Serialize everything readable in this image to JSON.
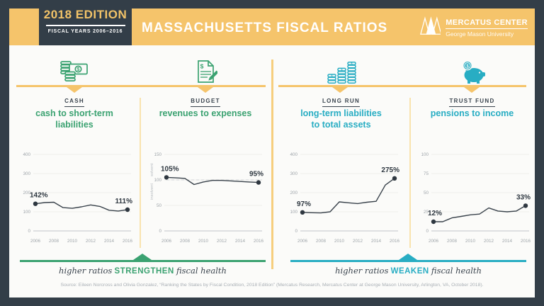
{
  "header": {
    "badge": {
      "edition": "2018 EDITION",
      "years": "FISCAL YEARS 2006–2016"
    },
    "title": "MASSACHUSETTS FISCAL RATIOS",
    "logo": {
      "name": "MERCATUS CENTER",
      "subname": "George Mason University"
    }
  },
  "colors": {
    "navy": "#333E48",
    "yellow": "#F5C46B",
    "green": "#3BA271",
    "teal": "#28ADC3",
    "chart_line": "#39424B",
    "tick_gray": "#9FA5AA",
    "card": "#FBFBF9"
  },
  "sections": [
    {
      "icon": "cash-icon",
      "label": "CASH",
      "subtitle": "cash to short-term\nliabilities",
      "accent": "green"
    },
    {
      "icon": "budget-document-icon",
      "label": "BUDGET",
      "subtitle": "revenues to expenses",
      "accent": "green"
    },
    {
      "icon": "coin-stacks-icon",
      "label": "LONG RUN",
      "subtitle": "long-term liabilities\nto total assets",
      "accent": "teal"
    },
    {
      "icon": "piggy-bank-icon",
      "label": "TRUST FUND",
      "subtitle": "pensions to income",
      "accent": "teal"
    }
  ],
  "chart_data": [
    {
      "type": "line",
      "title": "cash to short-term liabilities",
      "section": "CASH",
      "x": [
        2006,
        2007,
        2008,
        2009,
        2010,
        2011,
        2012,
        2013,
        2014,
        2015,
        2016
      ],
      "values": [
        142,
        148,
        150,
        122,
        118,
        126,
        136,
        128,
        108,
        104,
        111
      ],
      "yticks": [
        0,
        100,
        200,
        300,
        400
      ],
      "ylim": [
        0,
        400
      ],
      "xtick_labels": [
        "2006",
        "2008",
        "2010",
        "2012",
        "2014",
        "2016"
      ],
      "start_label": "142%",
      "end_label": "111%",
      "grid": true,
      "legend": "none"
    },
    {
      "type": "line",
      "title": "revenues to expenses",
      "section": "BUDGET",
      "x": [
        2006,
        2007,
        2008,
        2009,
        2010,
        2011,
        2012,
        2013,
        2014,
        2015,
        2016
      ],
      "values": [
        105,
        104,
        103,
        91,
        96,
        99,
        99,
        98,
        97,
        96,
        95
      ],
      "yticks": [
        0,
        50,
        100,
        150
      ],
      "ylim": [
        0,
        150
      ],
      "xtick_labels": [
        "2006",
        "2008",
        "2010",
        "2012",
        "2014",
        "2016"
      ],
      "reference_line": 100,
      "axis_annotations": [
        "solvent",
        "insolvent"
      ],
      "start_label": "105%",
      "end_label": "95%",
      "grid": true,
      "legend": "none"
    },
    {
      "type": "line",
      "title": "long-term liabilities to total assets",
      "section": "LONG RUN",
      "x": [
        2006,
        2007,
        2008,
        2009,
        2010,
        2011,
        2012,
        2013,
        2014,
        2015,
        2016
      ],
      "values": [
        97,
        95,
        94,
        100,
        152,
        147,
        143,
        150,
        155,
        240,
        275
      ],
      "yticks": [
        0,
        100,
        200,
        300,
        400
      ],
      "ylim": [
        0,
        400
      ],
      "xtick_labels": [
        "2006",
        "2008",
        "2010",
        "2012",
        "2014",
        "2016"
      ],
      "start_label": "97%",
      "end_label": "275%",
      "grid": true,
      "legend": "none"
    },
    {
      "type": "line",
      "title": "pensions to income",
      "section": "TRUST FUND",
      "x": [
        2006,
        2007,
        2008,
        2009,
        2010,
        2011,
        2012,
        2013,
        2014,
        2015,
        2016
      ],
      "values": [
        12,
        12,
        17,
        19,
        21,
        22,
        30,
        26,
        25,
        26,
        33
      ],
      "yticks": [
        0,
        25,
        50,
        75,
        100
      ],
      "ylim": [
        0,
        100
      ],
      "xtick_labels": [
        "2006",
        "2008",
        "2010",
        "2012",
        "2014",
        "2016"
      ],
      "start_label": "12%",
      "end_label": "33%",
      "grid": true,
      "legend": "none"
    }
  ],
  "footer": {
    "left": {
      "prefix": "higher ratios",
      "keyword": "STRENGTHEN",
      "suffix": "fiscal health"
    },
    "right": {
      "prefix": "higher ratios",
      "keyword": "WEAKEN",
      "suffix": "fiscal health"
    },
    "source": "Source: Eileen Norcross and Olivia Gonzalez, “Ranking the States by Fiscal Condition, 2018 Edition” (Mercatus Research, Mercatus Center at George Mason University, Arlington, VA, October 2018)."
  }
}
